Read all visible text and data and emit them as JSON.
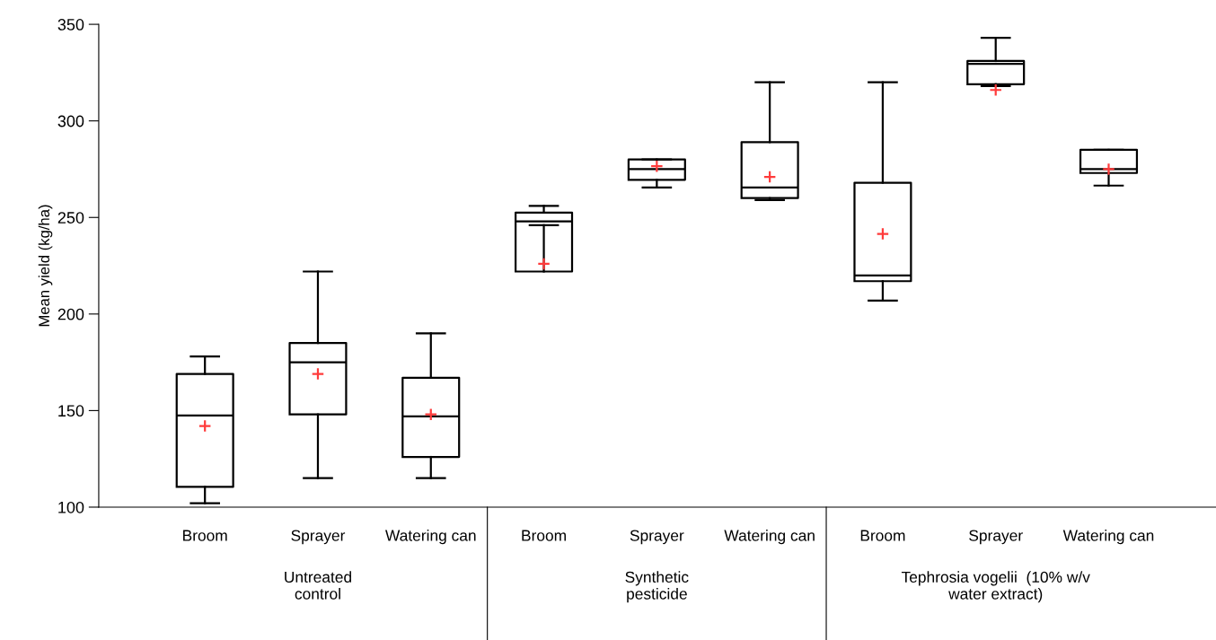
{
  "chart_data": {
    "type": "box",
    "ylabel": "Mean yield (kg/ha)",
    "categories": [
      "Broom",
      "Sprayer",
      "Watering can",
      "Broom",
      "Sprayer",
      "Watering can",
      "Broom",
      "Sprayer",
      "Watering can"
    ],
    "boxes": [
      {
        "low": 102,
        "q1": 110.5,
        "median": 147.5,
        "q3": 169,
        "high": 178,
        "mean": 142
      },
      {
        "low": 115,
        "q1": 148,
        "median": 175,
        "q3": 185,
        "high": 222,
        "mean": 169
      },
      {
        "low": 115,
        "q1": 126,
        "median": 147,
        "q3": 167,
        "high": 190,
        "mean": 148
      },
      {
        "low": 246,
        "q1": 222,
        "median": 248,
        "q3": 252.5,
        "high": 256,
        "mean": 226
      },
      {
        "low": 265.5,
        "q1": 269.5,
        "median": 275,
        "q3": 280,
        "high": 280,
        "mean": 276.5
      },
      {
        "low": 259,
        "q1": 260,
        "median": 265.5,
        "q3": 289,
        "high": 320,
        "mean": 271
      },
      {
        "low": 207,
        "q1": 217,
        "median": 220,
        "q3": 268,
        "high": 320,
        "mean": 241.5
      },
      {
        "low": 318,
        "q1": 319,
        "median": 329.5,
        "q3": 331,
        "high": 343,
        "mean": 316
      },
      {
        "low": 266.5,
        "q1": 273,
        "median": 275,
        "q3": 285,
        "high": 285,
        "mean": 275
      }
    ],
    "color": "#000000",
    "ylim": [
      100,
      350
    ],
    "yticks": [
      100,
      150,
      200,
      250,
      300,
      350
    ],
    "grid": false,
    "annotations": [
      "Untreated\ncontrol",
      "Synthetic\npesticide",
      "Tephrosia vogelii  (10% w/v\nwater extract)"
    ]
  }
}
